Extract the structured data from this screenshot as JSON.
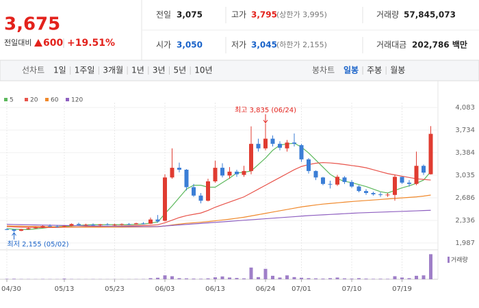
{
  "header": {
    "price": "3,675",
    "change_label": "전일대비",
    "change": "600",
    "change_rate": "+19.51%",
    "stats": [
      {
        "label": "전일",
        "value": "3,075"
      },
      {
        "label": "고가",
        "value": "3,795",
        "note": "(상한가 3,995)"
      },
      {
        "label": "거래량",
        "value": "57,845,073"
      },
      {
        "label": "시가",
        "value": "3,050"
      },
      {
        "label": "저가",
        "value": "3,045",
        "note": "(하한가 2,155)"
      },
      {
        "label": "거래대금",
        "value": "202,786 백만"
      }
    ]
  },
  "tabs": {
    "line_label": "선차트",
    "line": [
      "1일",
      "1주일",
      "3개월",
      "1년",
      "3년",
      "5년",
      "10년"
    ],
    "candle_label": "봉차트",
    "candle": [
      "일봉",
      "주봉",
      "월봉"
    ]
  },
  "chart_data": {
    "type": "candlestick",
    "categories": [
      "04/30",
      null,
      null,
      null,
      null,
      null,
      null,
      null,
      "05/13",
      null,
      null,
      null,
      null,
      null,
      null,
      "05/23",
      null,
      null,
      null,
      null,
      null,
      null,
      "06/03",
      null,
      null,
      null,
      null,
      null,
      null,
      "06/13",
      null,
      null,
      null,
      null,
      null,
      null,
      "06/24",
      null,
      null,
      null,
      null,
      "07/01",
      null,
      null,
      null,
      null,
      null,
      null,
      "07/10",
      null,
      null,
      null,
      null,
      null,
      null,
      "07/19",
      null,
      null,
      null,
      null
    ],
    "open": [
      2200,
      2195,
      2175,
      2200,
      2215,
      2230,
      2250,
      2245,
      2240,
      2250,
      2280,
      2265,
      2270,
      2260,
      2275,
      2265,
      2270,
      2280,
      2275,
      2290,
      2285,
      2350,
      2330,
      3000,
      3150,
      3120,
      2850,
      2720,
      2640,
      2940,
      3150,
      3030,
      3090,
      3040,
      3100,
      3520,
      3450,
      3600,
      3520,
      3450,
      3540,
      3500,
      3280,
      3100,
      3000,
      2900,
      2890,
      3000,
      2930,
      2860,
      2790,
      2760,
      2740,
      2730,
      2730,
      3010,
      2920,
      2900,
      3180,
      3050
    ],
    "high": [
      2215,
      2200,
      2205,
      2225,
      2240,
      2260,
      2275,
      2265,
      2260,
      2290,
      2300,
      2285,
      2290,
      2280,
      2295,
      2285,
      2290,
      2295,
      2300,
      2310,
      2380,
      2420,
      3050,
      3450,
      3230,
      3130,
      2900,
      2760,
      2980,
      3260,
      3220,
      3160,
      3120,
      3180,
      3790,
      3600,
      3835,
      3650,
      3560,
      3580,
      3680,
      3520,
      3300,
      3110,
      3010,
      2950,
      3040,
      3020,
      2960,
      2880,
      2820,
      2780,
      2770,
      2760,
      3040,
      3010,
      2960,
      3400,
      3200,
      3795
    ],
    "low": [
      2185,
      2155,
      2170,
      2195,
      2205,
      2220,
      2235,
      2225,
      2230,
      2245,
      2255,
      2250,
      2255,
      2245,
      2260,
      2250,
      2260,
      2265,
      2270,
      2275,
      2280,
      2300,
      2320,
      2980,
      3080,
      2800,
      2700,
      2600,
      2630,
      2920,
      3000,
      2980,
      3010,
      3010,
      3050,
      3400,
      3420,
      3480,
      3420,
      3400,
      3480,
      3240,
      3060,
      2960,
      2880,
      2830,
      2870,
      2900,
      2840,
      2770,
      2730,
      2720,
      2700,
      2700,
      2640,
      2900,
      2860,
      2880,
      3040,
      3045
    ],
    "close": [
      2195,
      2175,
      2200,
      2215,
      2230,
      2250,
      2245,
      2240,
      2250,
      2280,
      2265,
      2270,
      2260,
      2275,
      2265,
      2270,
      2280,
      2275,
      2290,
      2285,
      2350,
      2320,
      3000,
      3150,
      3120,
      2850,
      2720,
      2640,
      2940,
      3150,
      3030,
      3090,
      3050,
      3100,
      3520,
      3450,
      3600,
      3520,
      3460,
      3540,
      3520,
      3280,
      3100,
      3000,
      2900,
      2890,
      3010,
      2930,
      2860,
      2790,
      2760,
      2740,
      2730,
      2735,
      3010,
      2920,
      2900,
      3180,
      3075,
      3675
    ],
    "up_color": "#e03c31",
    "down_color": "#3b7ed6",
    "series": [
      {
        "name": "5",
        "color": "#5cb85c",
        "values": [
          2210,
          2200,
          2195,
          2195,
          2205,
          2215,
          2230,
          2240,
          2245,
          2250,
          2260,
          2265,
          2270,
          2270,
          2270,
          2270,
          2270,
          2270,
          2275,
          2280,
          2295,
          2310,
          2440,
          2560,
          2690,
          2820,
          2880,
          2880,
          2850,
          2850,
          2920,
          2990,
          3070,
          3080,
          3100,
          3200,
          3300,
          3420,
          3500,
          3520,
          3530,
          3470,
          3380,
          3270,
          3160,
          3050,
          2980,
          2940,
          2920,
          2890,
          2860,
          2820,
          2780,
          2760,
          2800,
          2840,
          2870,
          2910,
          2960,
          3090
        ]
      },
      {
        "name": "20",
        "color": "#e8534a",
        "values": [
          2240,
          2235,
          2230,
          2230,
          2228,
          2226,
          2226,
          2228,
          2230,
          2232,
          2235,
          2238,
          2240,
          2242,
          2245,
          2248,
          2250,
          2252,
          2255,
          2258,
          2262,
          2268,
          2300,
          2340,
          2380,
          2410,
          2430,
          2450,
          2490,
          2540,
          2580,
          2620,
          2660,
          2700,
          2760,
          2820,
          2880,
          2940,
          3000,
          3060,
          3120,
          3170,
          3200,
          3220,
          3230,
          3225,
          3215,
          3200,
          3185,
          3170,
          3150,
          3120,
          3090,
          3060,
          3040,
          3020,
          3000,
          2980,
          2970,
          2960
        ]
      },
      {
        "name": "60",
        "color": "#f0882a",
        "values": [
          2250,
          2248,
          2246,
          2244,
          2242,
          2240,
          2238,
          2236,
          2235,
          2234,
          2233,
          2232,
          2232,
          2232,
          2232,
          2232,
          2232,
          2233,
          2234,
          2235,
          2236,
          2238,
          2250,
          2265,
          2280,
          2292,
          2300,
          2308,
          2318,
          2330,
          2342,
          2355,
          2370,
          2385,
          2405,
          2425,
          2445,
          2465,
          2485,
          2505,
          2525,
          2545,
          2560,
          2575,
          2588,
          2598,
          2608,
          2618,
          2628,
          2636,
          2644,
          2652,
          2660,
          2668,
          2676,
          2684,
          2692,
          2700,
          2712,
          2728
        ]
      },
      {
        "name": "120",
        "color": "#8e5fc0",
        "values": [
          2275,
          2272,
          2270,
          2268,
          2266,
          2264,
          2262,
          2260,
          2258,
          2256,
          2254,
          2252,
          2250,
          2248,
          2246,
          2244,
          2243,
          2242,
          2241,
          2240,
          2240,
          2241,
          2250,
          2258,
          2266,
          2274,
          2282,
          2290,
          2298,
          2306,
          2314,
          2322,
          2330,
          2338,
          2346,
          2354,
          2362,
          2370,
          2378,
          2386,
          2394,
          2402,
          2410,
          2416,
          2422,
          2428,
          2434,
          2440,
          2446,
          2452,
          2456,
          2460,
          2464,
          2468,
          2472,
          2476,
          2480,
          2484,
          2488,
          2492
        ]
      }
    ],
    "volume": {
      "name": "거래량",
      "color": "#9f7fc8",
      "values": [
        900000,
        1200000,
        600000,
        500000,
        400000,
        700000,
        500000,
        400000,
        1500000,
        600000,
        400000,
        300000,
        500000,
        400000,
        300000,
        400000,
        300000,
        400000,
        500000,
        600000,
        2500000,
        3500000,
        9000000,
        7000000,
        2500000,
        2000000,
        1500000,
        1200000,
        2000000,
        4500000,
        6500000,
        4000000,
        3000000,
        2000000,
        27000000,
        5000000,
        24000000,
        8000000,
        4000000,
        9000000,
        5000000,
        3500000,
        2500000,
        2000000,
        1500000,
        2500000,
        4000000,
        2000000,
        1500000,
        2500000,
        1500000,
        1000000,
        1200000,
        1000000,
        7000000,
        4000000,
        2500000,
        8000000,
        9000000,
        57845073
      ]
    },
    "vlim": [
      0,
      60000000
    ],
    "ylim": [
      1881,
      4157
    ],
    "yticks": [
      {
        "value": 4083,
        "label": "4,083"
      },
      {
        "value": 3734,
        "label": "3,734"
      },
      {
        "value": 3384,
        "label": "3,384"
      },
      {
        "value": 3035,
        "label": "3,035"
      },
      {
        "value": 2686,
        "label": "2,686"
      },
      {
        "value": 2336,
        "label": "2,336"
      },
      {
        "value": 1987,
        "label": "1,987"
      }
    ],
    "grid": true,
    "annotations": {
      "high": "최고 3,835 (06/24)",
      "low": "최저 2,155 (05/02)"
    }
  }
}
